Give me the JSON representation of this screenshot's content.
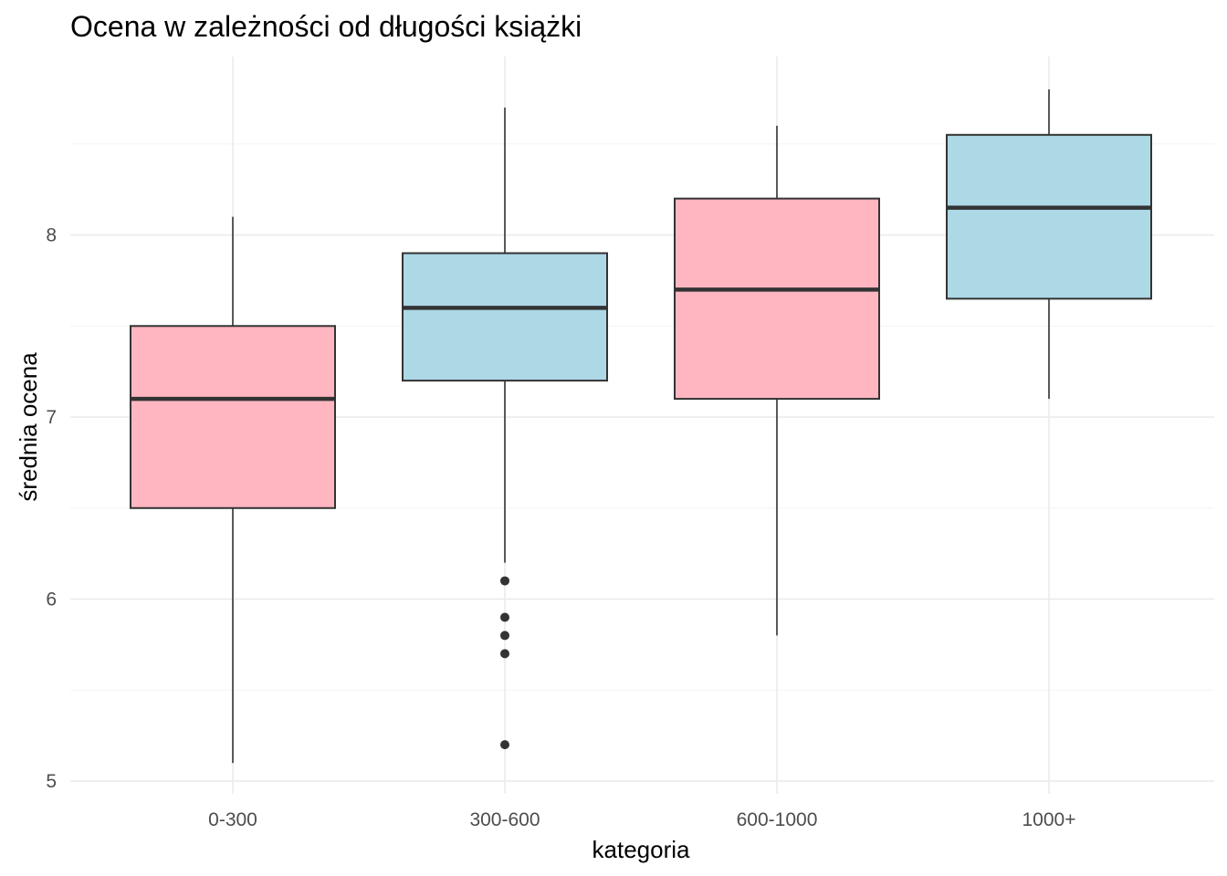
{
  "chart_data": {
    "type": "boxplot",
    "title": "Ocena w zależności od długości książki",
    "xlabel": "kategoria",
    "ylabel": "średnia ocena",
    "categories": [
      "0-300",
      "300-600",
      "600-1000",
      "1000+"
    ],
    "ylim": [
      4.93,
      8.98
    ],
    "yticks": [
      5,
      6,
      7,
      8
    ],
    "ytick_labels": [
      "5",
      "6",
      "7",
      "8"
    ],
    "grid": true,
    "boxes": [
      {
        "category": "0-300",
        "min": 5.1,
        "q1": 6.5,
        "median": 7.1,
        "q3": 7.5,
        "max": 8.1,
        "outliers": [],
        "fill": "#ffb6c1"
      },
      {
        "category": "300-600",
        "min": 6.2,
        "q1": 7.2,
        "median": 7.6,
        "q3": 7.9,
        "max": 8.7,
        "outliers": [
          6.1,
          5.9,
          5.8,
          5.7,
          5.2
        ],
        "fill": "#add8e6"
      },
      {
        "category": "600-1000",
        "min": 5.8,
        "q1": 7.1,
        "median": 7.7,
        "q3": 8.2,
        "max": 8.6,
        "outliers": [],
        "fill": "#ffb6c1"
      },
      {
        "category": "1000+",
        "min": 7.1,
        "q1": 7.65,
        "median": 8.15,
        "q3": 8.55,
        "max": 8.8,
        "outliers": [],
        "fill": "#add8e6"
      }
    ]
  }
}
